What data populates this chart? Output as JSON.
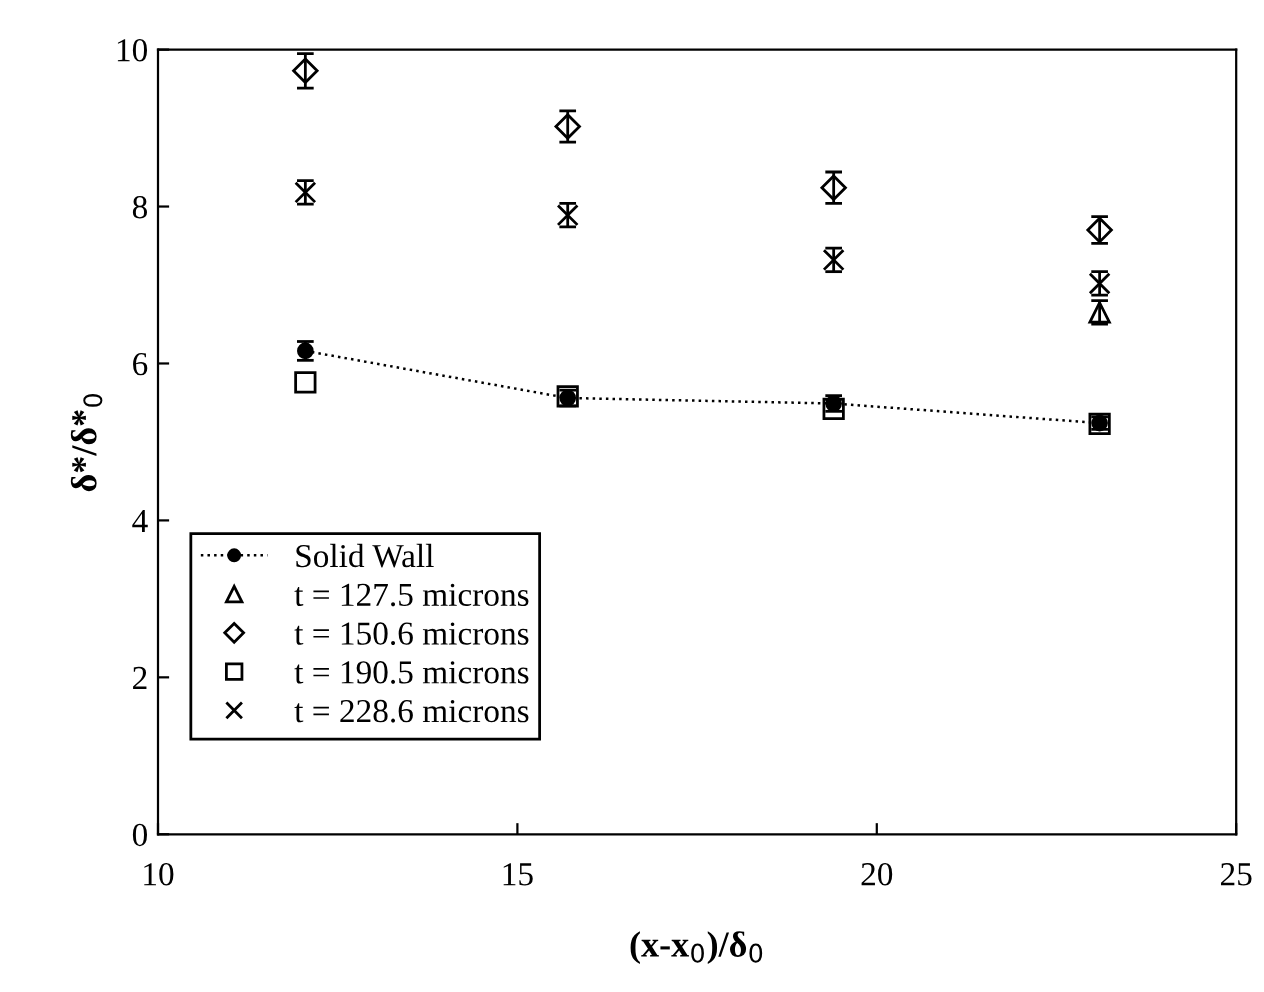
{
  "chart_data": {
    "type": "scatter",
    "xlabel": "(x-x$_{0}$)/δ$_{0}$",
    "ylabel": "δ*/δ*$_{0}$",
    "x": [
      12.05,
      15.7,
      19.4,
      23.1
    ],
    "series": [
      {
        "name": "Solid Wall",
        "color": "#000000",
        "type": "line",
        "line_style": "dotted",
        "marker": "circle",
        "values": [
          6.16,
          5.56,
          5.49,
          5.24
        ],
        "errors": [
          0.12,
          0.1,
          0.1,
          0.08
        ]
      },
      {
        "name": "t = 127.5 microns",
        "color": "#000000",
        "marker": "triangle",
        "values": [
          null,
          null,
          null,
          6.65
        ],
        "errors": [
          null,
          null,
          null,
          0.15
        ]
      },
      {
        "name": "t = 150.6 microns",
        "color": "#000000",
        "marker": "diamond",
        "values": [
          9.73,
          9.02,
          8.24,
          7.7
        ],
        "errors": [
          0.22,
          0.2,
          0.2,
          0.17
        ]
      },
      {
        "name": "t = 190.5 microns",
        "color": "#000000",
        "marker": "square",
        "values": [
          5.76,
          5.58,
          5.42,
          5.23
        ]
      },
      {
        "name": "t = 228.6 microns",
        "color": "#000000",
        "marker": "cross",
        "values": [
          8.18,
          7.89,
          7.32,
          7.02
        ],
        "errors": [
          0.15,
          0.15,
          0.15,
          0.15
        ]
      }
    ],
    "xlim": [
      10,
      25
    ],
    "xticks": [
      10,
      15,
      20,
      25
    ],
    "ylim": [
      0,
      10
    ],
    "yticks": [
      0,
      2,
      4,
      6,
      8,
      10
    ],
    "grid": false,
    "legend": "bottom left"
  }
}
